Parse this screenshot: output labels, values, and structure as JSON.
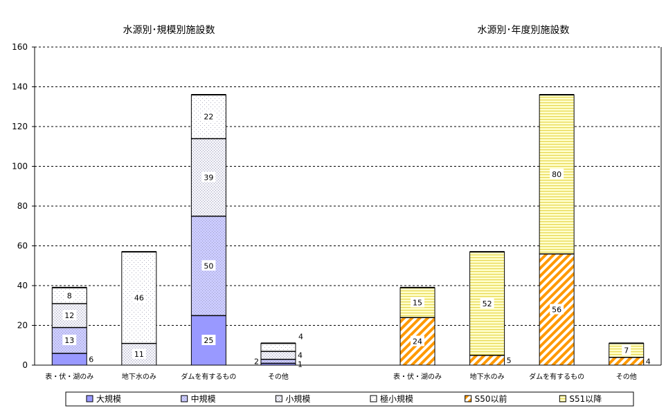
{
  "chart_data": [
    {
      "type": "bar",
      "stacked": true,
      "title": "水源別･規模別施設数",
      "xlabel": "",
      "ylabel": "",
      "ylim": [
        0,
        160
      ],
      "yticks": [
        0,
        20,
        40,
        60,
        80,
        100,
        120,
        140,
        160
      ],
      "grid": true,
      "categories": [
        "表・伏・湖のみ",
        "地下水のみ",
        "ダムを有するもの",
        "その他"
      ],
      "series": [
        {
          "name": "大規模",
          "values": [
            6,
            0,
            25,
            1
          ],
          "color": "#9999ff"
        },
        {
          "name": "中規模",
          "values": [
            13,
            0,
            50,
            2
          ],
          "color": "#ccccff"
        },
        {
          "name": "小規模",
          "values": [
            12,
            11,
            39,
            4
          ],
          "color": "#e4e4f0"
        },
        {
          "name": "極小規模",
          "values": [
            8,
            46,
            22,
            4
          ],
          "color": "#ffffff"
        }
      ]
    },
    {
      "type": "bar",
      "stacked": true,
      "title": "水源別･年度別施設数",
      "xlabel": "",
      "ylabel": "",
      "ylim": [
        0,
        160
      ],
      "grid": true,
      "categories": [
        "表・伏・湖のみ",
        "地下水のみ",
        "ダムを有するもの",
        "その他"
      ],
      "series": [
        {
          "name": "S50以前",
          "values": [
            24,
            5,
            56,
            4
          ],
          "color": "#ff9900"
        },
        {
          "name": "S51以降",
          "values": [
            15,
            52,
            80,
            7
          ],
          "color": "#ffff99"
        }
      ]
    }
  ]
}
